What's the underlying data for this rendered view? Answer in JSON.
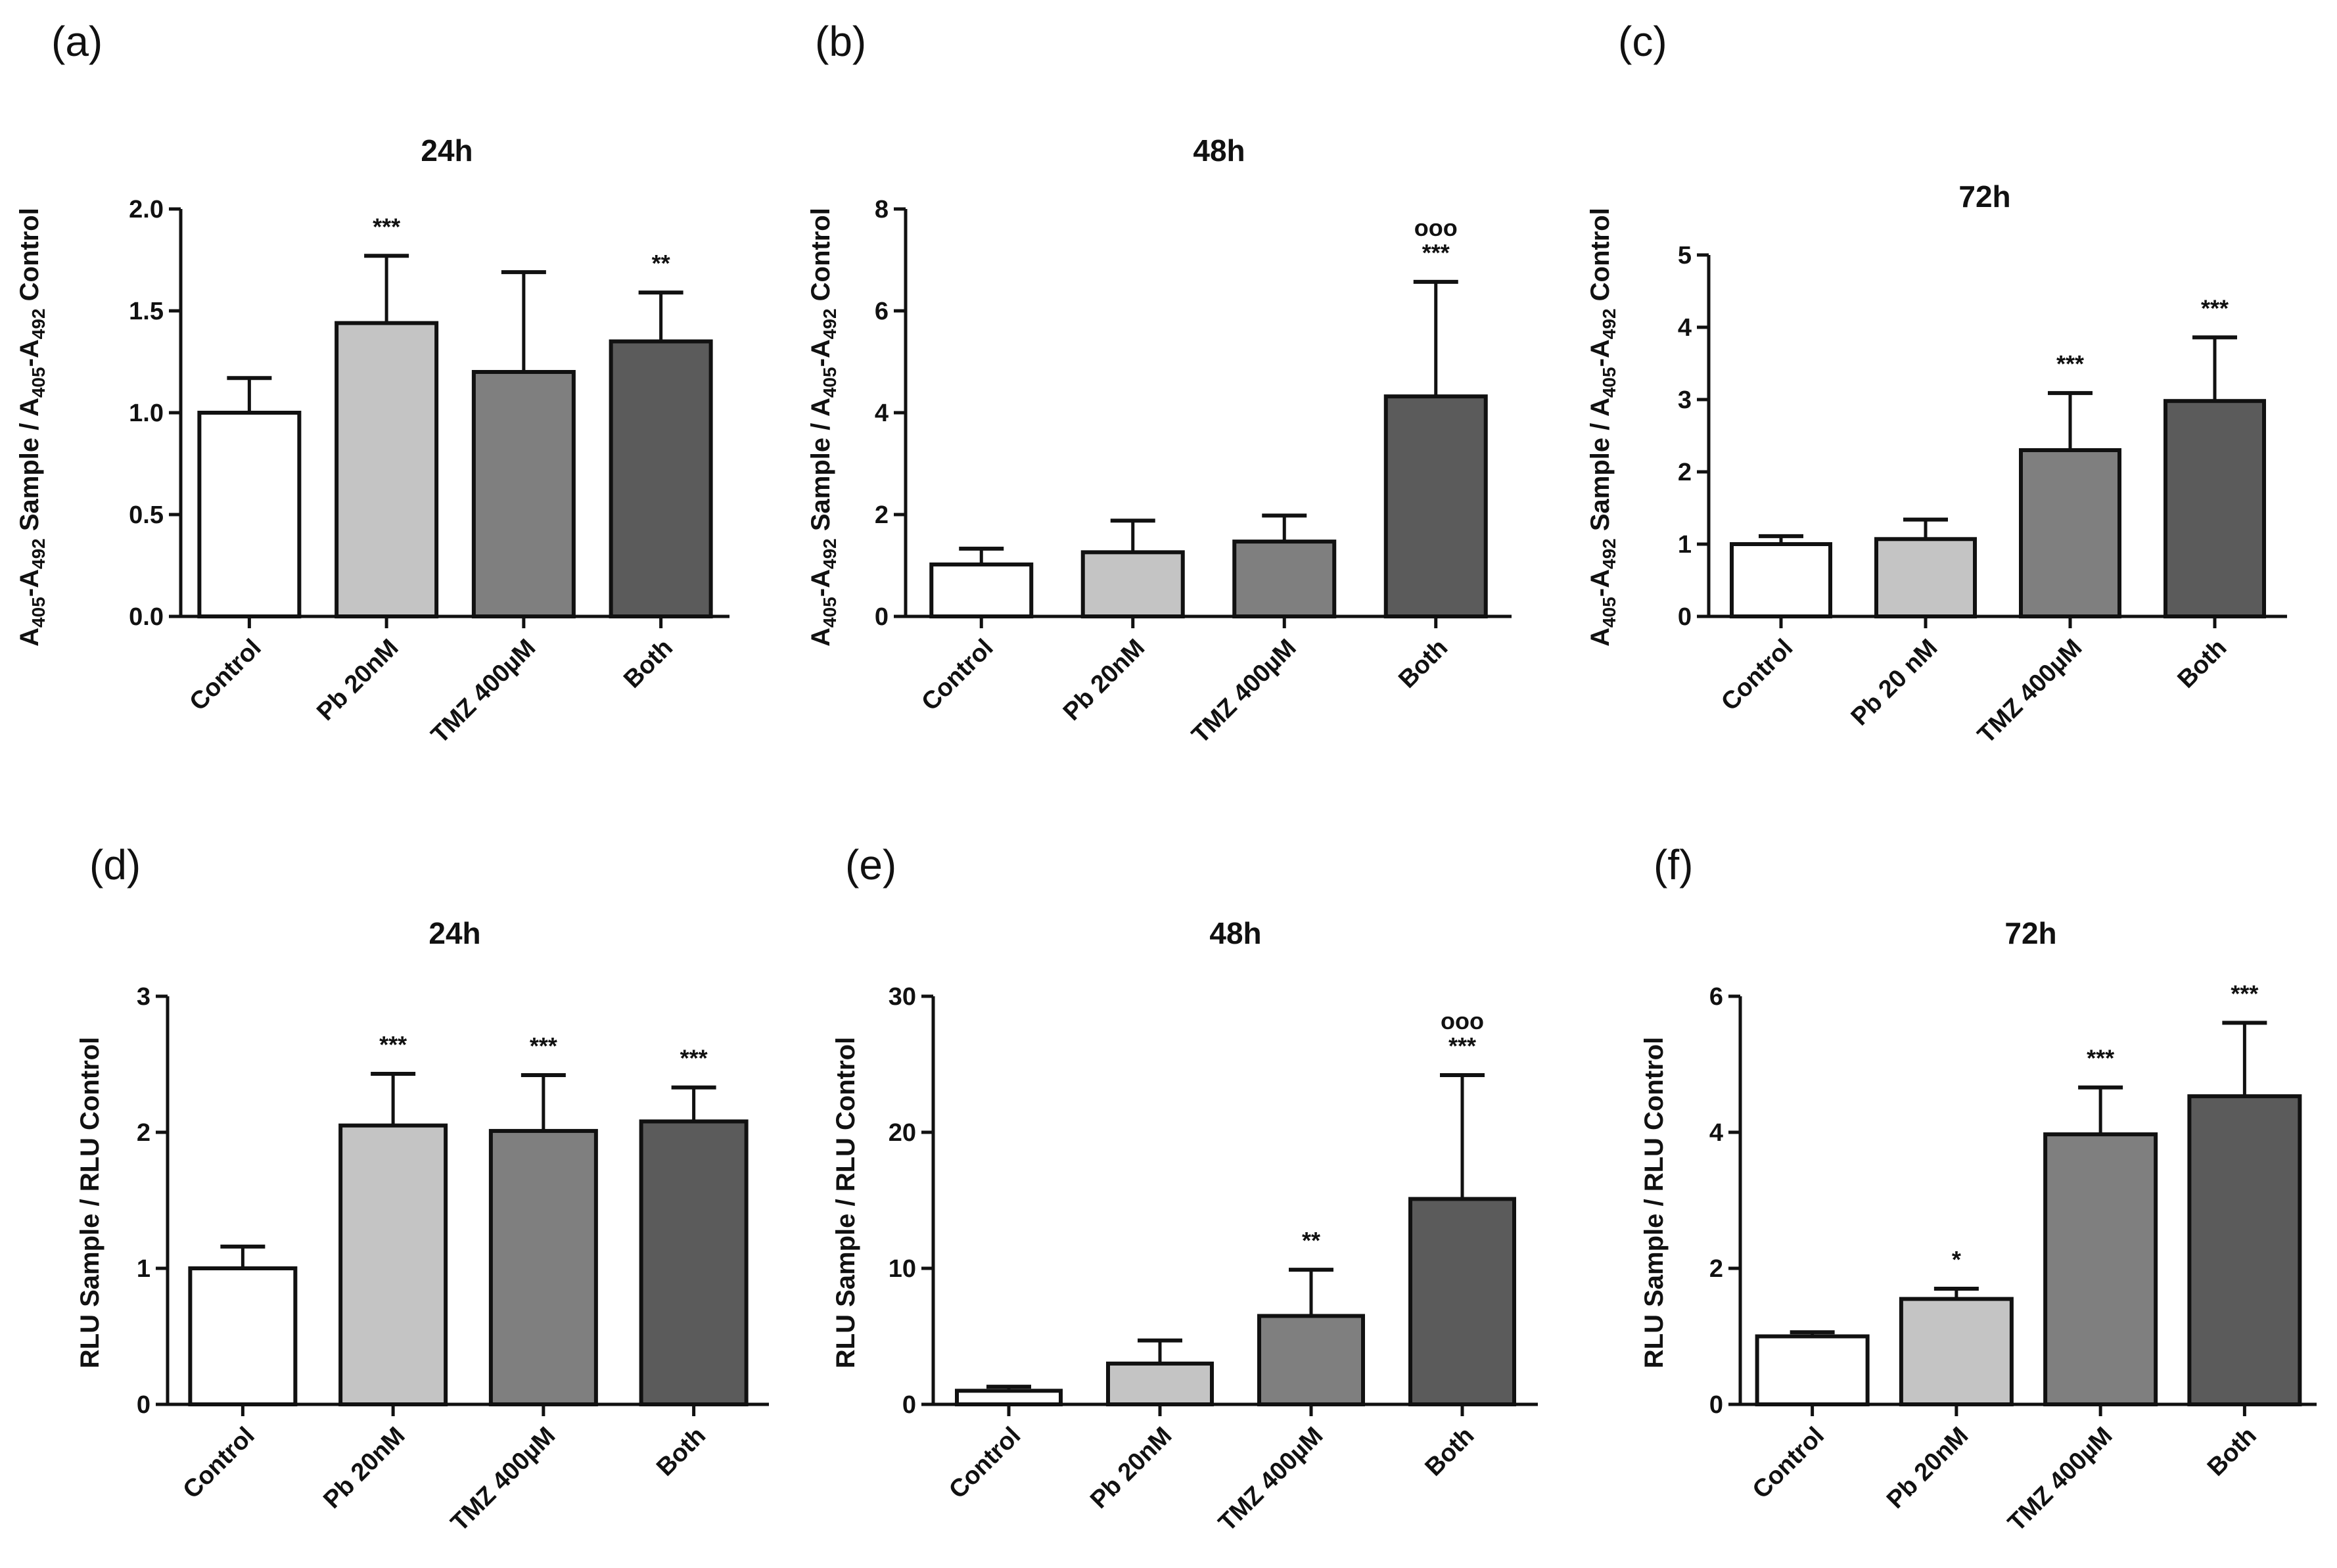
{
  "colors": {
    "Control": "#ffffff",
    "Pb": "#c4c4c4",
    "TMZ": "#7f7f7f",
    "Both": "#5b5b5b",
    "stroke": "#111111"
  },
  "chart_data": [
    {
      "type": "bar",
      "panel": "(a)",
      "title": "24h",
      "ylabel_parts": [
        "A",
        "405",
        "-A",
        "492",
        " Sample / A",
        "405",
        "-A",
        "492",
        " Control"
      ],
      "ylim": [
        0,
        2.0
      ],
      "yticks": [
        "0.0",
        "0.5",
        "1.0",
        "1.5",
        "2.0"
      ],
      "tick_values": [
        0,
        0.5,
        1.0,
        1.5,
        2.0
      ],
      "categories": [
        "Control",
        "Pb 20nM",
        "TMZ 400µM",
        "Both"
      ],
      "values": [
        1.0,
        1.44,
        1.2,
        1.35
      ],
      "errors": [
        0.17,
        0.33,
        0.49,
        0.24
      ],
      "annotations": [
        "",
        "***",
        "",
        "**"
      ]
    },
    {
      "type": "bar",
      "panel": "(b)",
      "title": "48h",
      "ylabel_parts": [
        "A",
        "405",
        "-A",
        "492",
        " Sample / A",
        "405",
        "-A",
        "492",
        " Control"
      ],
      "ylim": [
        0,
        8
      ],
      "yticks": [
        "0",
        "2",
        "4",
        "6",
        "8"
      ],
      "tick_values": [
        0,
        2,
        4,
        6,
        8
      ],
      "categories": [
        "Control",
        "Pb 20nM",
        "TMZ 400µM",
        "Both"
      ],
      "values": [
        1.02,
        1.26,
        1.47,
        4.32
      ],
      "errors": [
        0.31,
        0.62,
        0.51,
        2.25
      ],
      "annotations": [
        "",
        "",
        "",
        "***"
      ],
      "annotations2": [
        "",
        "",
        "",
        "ooo"
      ]
    },
    {
      "type": "bar",
      "panel": "(c)",
      "title": "72h",
      "ylabel_parts": [
        "A",
        "405",
        "-A",
        "492",
        " Sample / A",
        "405",
        "-A",
        "492",
        " Control"
      ],
      "ylim": [
        0,
        5
      ],
      "yticks": [
        "0",
        "1",
        "2",
        "3",
        "4",
        "5"
      ],
      "tick_values": [
        0,
        1,
        2,
        3,
        4,
        5
      ],
      "categories": [
        "Control",
        "Pb 20 nM",
        "TMZ 400µM",
        "Both"
      ],
      "values": [
        1.0,
        1.07,
        2.3,
        2.98
      ],
      "errors": [
        0.11,
        0.27,
        0.79,
        0.88
      ],
      "annotations": [
        "",
        "",
        "***",
        "***"
      ]
    },
    {
      "type": "bar",
      "panel": "(d)",
      "title": "24h",
      "ylabel": "RLU Sample / RLU Control",
      "ylim": [
        0,
        3
      ],
      "yticks": [
        "0",
        "1",
        "2",
        "3"
      ],
      "tick_values": [
        0,
        1,
        2,
        3
      ],
      "categories": [
        "Control",
        "Pb 20nM",
        "TMZ 400µM",
        "Both"
      ],
      "values": [
        1.0,
        2.05,
        2.01,
        2.08
      ],
      "errors": [
        0.16,
        0.38,
        0.41,
        0.25
      ],
      "annotations": [
        "",
        "***",
        "***",
        "***"
      ]
    },
    {
      "type": "bar",
      "panel": "(e)",
      "title": "48h",
      "ylabel": "RLU Sample / RLU Control",
      "ylim": [
        0,
        30
      ],
      "yticks": [
        "0",
        "10",
        "20",
        "30"
      ],
      "tick_values": [
        0,
        10,
        20,
        30
      ],
      "categories": [
        "Control",
        "Pb 20nM",
        "TMZ 400µM",
        "Both"
      ],
      "values": [
        1.0,
        3.0,
        6.5,
        15.1
      ],
      "errors": [
        0.3,
        1.7,
        3.4,
        9.1
      ],
      "annotations": [
        "",
        "",
        "**",
        "***"
      ],
      "annotations2": [
        "",
        "",
        "",
        "ooo"
      ]
    },
    {
      "type": "bar",
      "panel": "(f)",
      "title": "72h",
      "ylabel": "RLU Sample / RLU Control",
      "ylim": [
        0,
        6
      ],
      "yticks": [
        "0",
        "2",
        "4",
        "6"
      ],
      "tick_values": [
        0,
        2,
        4,
        6
      ],
      "categories": [
        "Control",
        "Pb 20nM",
        "TMZ 400µM",
        "Both"
      ],
      "values": [
        1.0,
        1.55,
        3.97,
        4.53
      ],
      "errors": [
        0.06,
        0.15,
        0.69,
        1.08
      ],
      "annotations": [
        "",
        "*",
        "***",
        "***"
      ]
    }
  ]
}
